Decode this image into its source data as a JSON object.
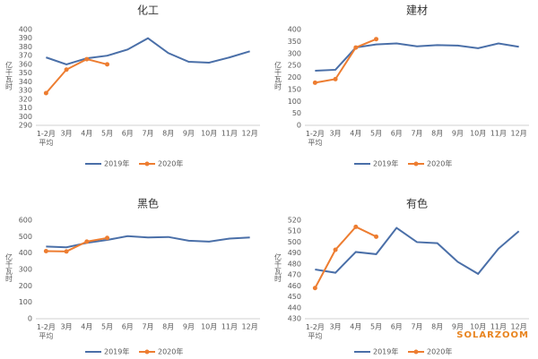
{
  "chart_data": [
    {
      "type": "line",
      "title": "化工",
      "y_label": "亿千瓦时",
      "categories": [
        "1-2月\n平均",
        "3月",
        "4月",
        "5月",
        "6月",
        "7月",
        "8月",
        "9月",
        "10月",
        "11月",
        "12月"
      ],
      "series": [
        {
          "name": "2019年",
          "color": "#4a6fa8",
          "values": [
            368,
            360,
            367,
            370,
            377,
            390,
            373,
            363,
            362,
            368,
            375
          ]
        },
        {
          "name": "2020年",
          "color": "#ed7d31",
          "marker": true,
          "values": [
            327,
            354,
            366,
            360,
            null,
            null,
            null,
            null,
            null,
            null,
            null
          ]
        }
      ],
      "ylim": [
        290,
        400
      ],
      "yticks": [
        290,
        300,
        310,
        320,
        330,
        340,
        350,
        360,
        370,
        380,
        390,
        400
      ],
      "grid": false,
      "legend": "bottom"
    },
    {
      "type": "line",
      "title": "建材",
      "y_label": "亿千瓦时",
      "categories": [
        "1-2月\n平均",
        "3月",
        "4月",
        "5月",
        "6月",
        "7月",
        "8月",
        "9月",
        "10月",
        "11月",
        "12月"
      ],
      "series": [
        {
          "name": "2019年",
          "color": "#4a6fa8",
          "values": [
            228,
            232,
            325,
            338,
            342,
            330,
            335,
            333,
            322,
            342,
            328
          ]
        },
        {
          "name": "2020年",
          "color": "#ed7d31",
          "marker": true,
          "values": [
            178,
            193,
            325,
            360,
            null,
            null,
            null,
            null,
            null,
            null,
            null
          ]
        }
      ],
      "ylim": [
        0,
        400
      ],
      "yticks": [
        0,
        50,
        100,
        150,
        200,
        250,
        300,
        350,
        400
      ],
      "grid": false,
      "legend": "bottom"
    },
    {
      "type": "line",
      "title": "黑色",
      "y_label": "亿千瓦时",
      "categories": [
        "1-2月\n平均",
        "3月",
        "4月",
        "5月",
        "6月",
        "7月",
        "8月",
        "9月",
        "10月",
        "11月",
        "12月"
      ],
      "series": [
        {
          "name": "2019年",
          "color": "#4a6fa8",
          "values": [
            440,
            435,
            462,
            480,
            503,
            495,
            498,
            475,
            470,
            488,
            495
          ]
        },
        {
          "name": "2020年",
          "color": "#ed7d31",
          "marker": true,
          "values": [
            412,
            410,
            470,
            492,
            null,
            null,
            null,
            null,
            null,
            null,
            null
          ]
        }
      ],
      "ylim": [
        0,
        600
      ],
      "yticks": [
        0,
        100,
        200,
        300,
        400,
        500,
        600
      ],
      "grid": false,
      "legend": "bottom"
    },
    {
      "type": "line",
      "title": "有色",
      "y_label": "亿千瓦时",
      "categories": [
        "1-2月\n平均",
        "3月",
        "4月",
        "5月",
        "6月",
        "7月",
        "8月",
        "9月",
        "10月",
        "11月",
        "12月"
      ],
      "series": [
        {
          "name": "2019年",
          "color": "#4a6fa8",
          "values": [
            475,
            472,
            491,
            489,
            513,
            500,
            499,
            482,
            471,
            494,
            510
          ]
        },
        {
          "name": "2020年",
          "color": "#ed7d31",
          "marker": true,
          "values": [
            458,
            493,
            514,
            505,
            null,
            null,
            null,
            null,
            null,
            null,
            null
          ]
        }
      ],
      "ylim": [
        430,
        520
      ],
      "yticks": [
        430,
        440,
        450,
        460,
        470,
        480,
        490,
        500,
        510,
        520
      ],
      "grid": false,
      "legend": "bottom"
    }
  ],
  "watermark": "SOLARZOOM"
}
